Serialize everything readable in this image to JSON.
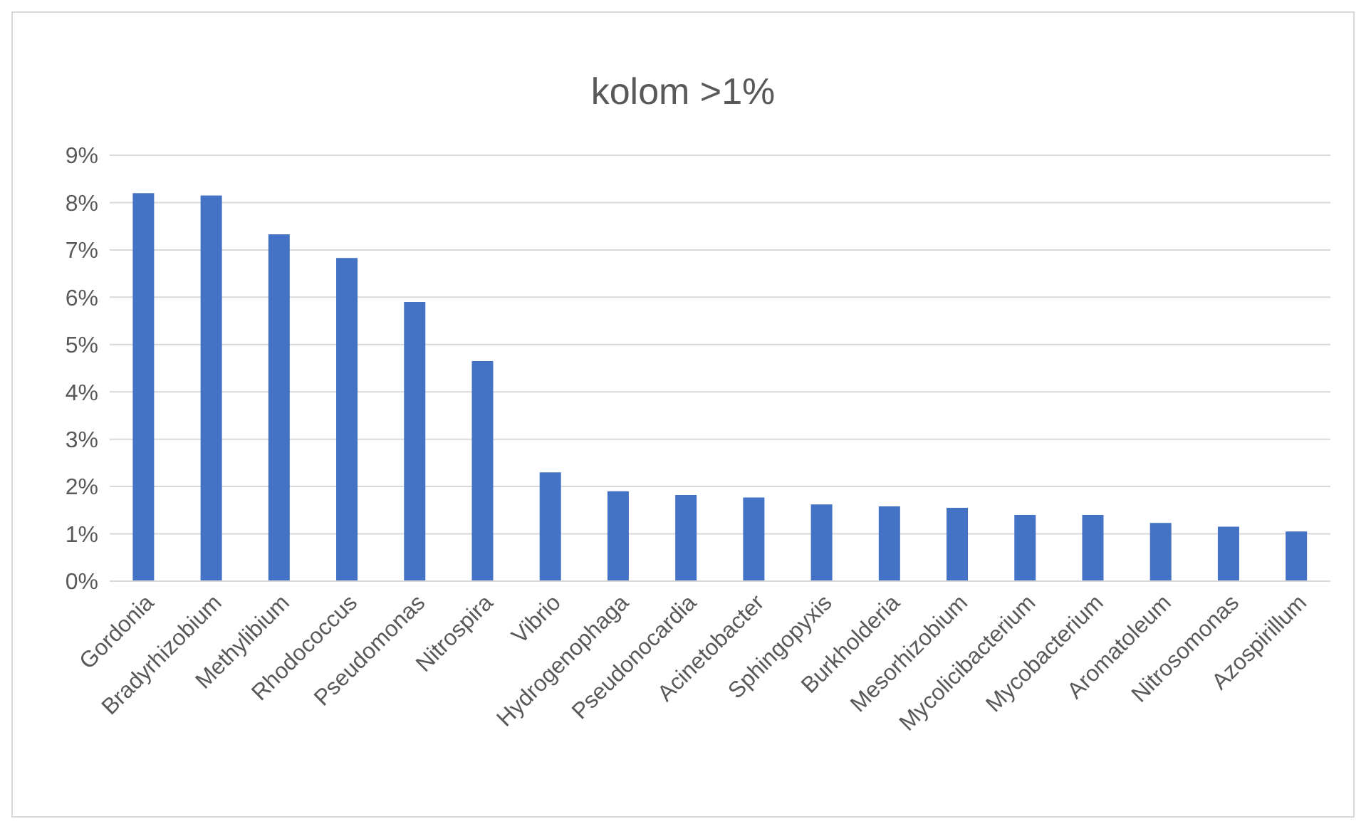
{
  "chart_data": {
    "type": "bar",
    "title": "kolom >1%",
    "categories": [
      "Gordonia",
      "Bradyrhizobium",
      "Methylibium",
      "Rhodococcus",
      "Pseudomonas",
      "Nitrospira",
      "Vibrio",
      "Hydrogenophaga",
      "Pseudonocardia",
      "Acinetobacter",
      "Sphingopyxis",
      "Burkholderia",
      "Mesorhizobium",
      "Mycolicibacterium",
      "Mycobacterium",
      "Aromatoleum",
      "Nitrosomonas",
      "Azospirillum"
    ],
    "values": [
      8.2,
      8.15,
      7.33,
      6.83,
      5.9,
      4.65,
      2.3,
      1.9,
      1.82,
      1.77,
      1.62,
      1.58,
      1.55,
      1.4,
      1.4,
      1.23,
      1.15,
      1.05
    ],
    "color": "#4472c4",
    "ylim": [
      0,
      9
    ],
    "yticks": [
      {
        "value": 0,
        "label": "0%"
      },
      {
        "value": 1,
        "label": "1%"
      },
      {
        "value": 2,
        "label": "2%"
      },
      {
        "value": 3,
        "label": "3%"
      },
      {
        "value": 4,
        "label": "4%"
      },
      {
        "value": 5,
        "label": "5%"
      },
      {
        "value": 6,
        "label": "6%"
      },
      {
        "value": 7,
        "label": "7%"
      },
      {
        "value": 8,
        "label": "8%"
      },
      {
        "value": 9,
        "label": "9%"
      }
    ],
    "grid": "y",
    "legend": false
  }
}
